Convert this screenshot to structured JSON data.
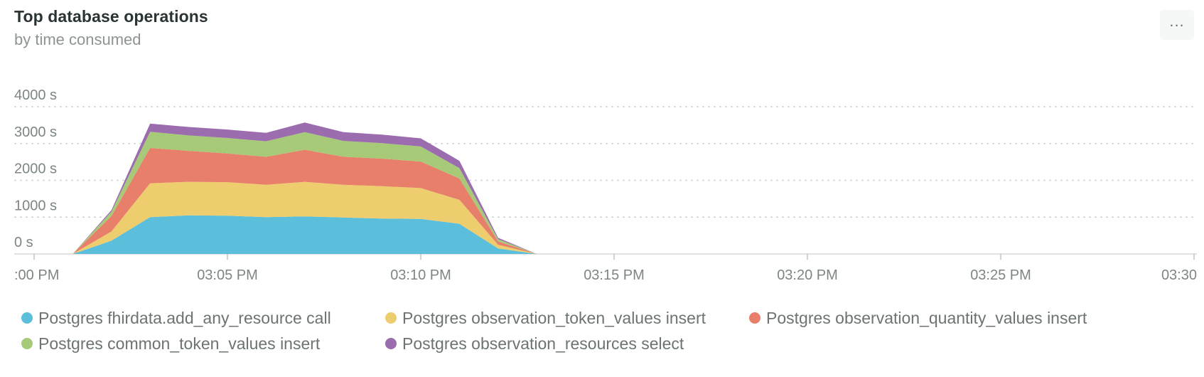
{
  "header": {
    "title": "Top database operations",
    "subtitle": "by time consumed",
    "more_label": "..."
  },
  "chart_data": {
    "type": "area",
    "stacked": true,
    "x": [
      "03:01 PM",
      "03:02 PM",
      "03:03 PM",
      "03:04 PM",
      "03:05 PM",
      "03:06 PM",
      "03:07 PM",
      "03:08 PM",
      "03:09 PM",
      "03:10 PM",
      "03:11 PM",
      "03:12 PM",
      "03:13 PM"
    ],
    "x_ticks": [
      ":00 PM",
      "03:05 PM",
      "03:10 PM",
      "03:15 PM",
      "03:20 PM",
      "03:25 PM",
      "03:30"
    ],
    "y_ticks": [
      "0 s",
      "1000 s",
      "2000 s",
      "3000 s",
      "4000 s"
    ],
    "ylim": [
      0,
      4000
    ],
    "grid": true,
    "legend_position": "bottom",
    "series": [
      {
        "name": "Postgres fhirdata.add_any_resource call",
        "color": "#5bbfdb",
        "values": [
          0,
          360,
          1000,
          1050,
          1040,
          1000,
          1020,
          990,
          960,
          950,
          820,
          150,
          0
        ]
      },
      {
        "name": "Postgres observation_token_values insert",
        "color": "#eecd6e",
        "values": [
          0,
          250,
          920,
          910,
          910,
          880,
          940,
          890,
          880,
          840,
          650,
          100,
          0
        ]
      },
      {
        "name": "Postgres observation_quantity_values insert",
        "color": "#e77f6b",
        "values": [
          0,
          420,
          960,
          840,
          780,
          760,
          870,
          760,
          750,
          720,
          580,
          90,
          0
        ]
      },
      {
        "name": "Postgres common_token_values insert",
        "color": "#a6ca78",
        "values": [
          0,
          120,
          440,
          420,
          420,
          420,
          480,
          430,
          420,
          410,
          280,
          60,
          0
        ]
      },
      {
        "name": "Postgres observation_resources select",
        "color": "#9b6cae",
        "values": [
          0,
          40,
          220,
          230,
          230,
          230,
          260,
          240,
          230,
          220,
          200,
          40,
          0
        ]
      }
    ]
  }
}
